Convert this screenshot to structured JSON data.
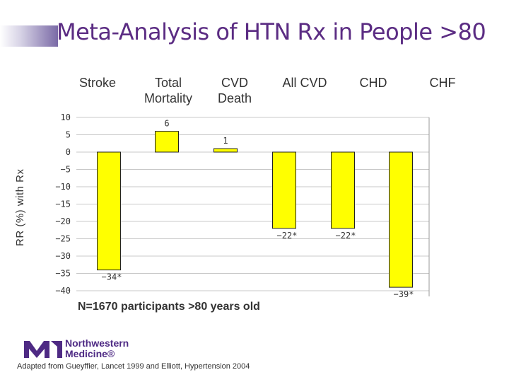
{
  "slide": {
    "title": "Meta-Analysis of HTN Rx in People >80",
    "footnote": "N=1670 participants >80 years old",
    "source": "Adapted from Gueyffier, Lancet 1999 and Elliott, Hypertension 2004",
    "logo_line1": "Northwestern",
    "logo_line2": "Medicine®"
  },
  "colors": {
    "bar": "#ffff00",
    "title": "#5b2c83",
    "grid": "#c8c8c8",
    "logo": "#4e2a84"
  },
  "chart_data": {
    "type": "bar",
    "categories": [
      "Stroke",
      "Total Mortality",
      "CVD Death",
      "All CVD",
      "CHD",
      "CHF"
    ],
    "values": [
      -34,
      6,
      1,
      -22,
      -22,
      -39
    ],
    "data_labels": [
      "-34*",
      "6",
      "1",
      "-22*",
      "-22*",
      "-39*"
    ],
    "ylabel": "RR (%) with Rx",
    "yticks": [
      10,
      5,
      0,
      -5,
      -10,
      -15,
      -20,
      -25,
      -30,
      -35,
      -40
    ],
    "ylim": [
      -40,
      10
    ],
    "grid": true
  }
}
